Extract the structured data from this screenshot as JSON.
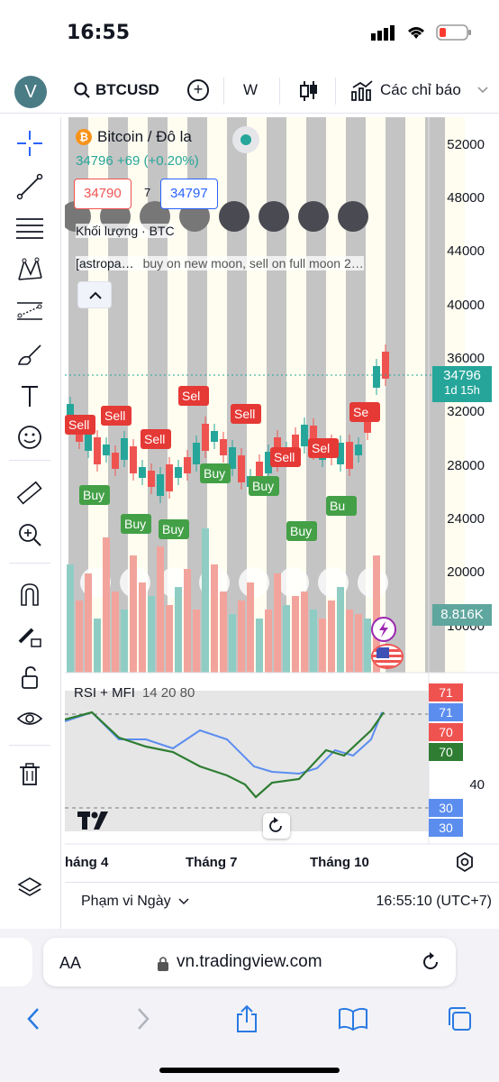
{
  "status": {
    "time": "16:55"
  },
  "toolbar": {
    "avatar": "V",
    "symbol": "BTCUSD",
    "add_label": "+",
    "interval": "W",
    "indicators_label": "Các chỉ báo"
  },
  "legend": {
    "title": "Bitcoin / Đô la",
    "coin_glyph": "₿",
    "price_change": "34796 +69 (+0.20%)",
    "bid": "34790",
    "spread": "7",
    "ask": "34797",
    "volume_label": "Khối lượng · BTC",
    "script_name": "[astropa…",
    "script_desc": "buy on new moon, sell on full moon 2…"
  },
  "price_axis": [
    "52000",
    "48000",
    "44000",
    "40000",
    "36000",
    "32000",
    "28000",
    "24000",
    "20000",
    "16000"
  ],
  "last_price": {
    "value": "34796",
    "countdown": "1d 15h"
  },
  "volume_tag": "8.816K",
  "rsi": {
    "label": "RSI + MFI",
    "params": "14 20 80",
    "level_40": "40",
    "tags": [
      {
        "text": "71",
        "color": "#ef5350"
      },
      {
        "text": "71",
        "color": "#5b8def"
      },
      {
        "text": "70",
        "color": "#ef5350"
      },
      {
        "text": "70",
        "color": "#2e7d32"
      },
      {
        "text": "30",
        "color": "#5b8def"
      },
      {
        "text": "30",
        "color": "#5b8def"
      }
    ]
  },
  "time_axis": [
    "háng 4",
    "Tháng 7",
    "Tháng 10"
  ],
  "signals": {
    "sell": "Sell",
    "buy": "Buy",
    "sell_short": "Se",
    "sell_short2": "Sel",
    "buy_short": "Bu"
  },
  "bottom": {
    "range": "Phạm vi Ngày",
    "clock": "16:55:10 (UTC+7)"
  },
  "browser": {
    "aa": "AA",
    "url": "vn.tradingview.com"
  },
  "colors": {
    "up": "#26a69a",
    "down": "#ef5350",
    "accent": "#2962ff",
    "buy_label": "#43a047",
    "sell_label": "#e53935"
  }
}
